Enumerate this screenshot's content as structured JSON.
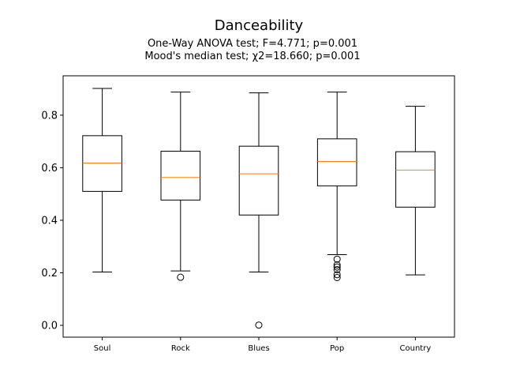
{
  "chart_data": {
    "type": "box",
    "title": "Danceability",
    "subtitle_lines": [
      "One-Way ANOVA test; F=4.771; p=0.001",
      "Mood's median test; χ2=18.660; p=0.001"
    ],
    "xlabel": "",
    "ylabel": "",
    "ylim": [
      -0.045,
      0.95
    ],
    "yticks": [
      0.0,
      0.2,
      0.4,
      0.6,
      0.8
    ],
    "ytick_labels": [
      "0.0",
      "0.2",
      "0.4",
      "0.6",
      "0.8"
    ],
    "categories": [
      "Soul",
      "Rock",
      "Blues",
      "Pop",
      "Country"
    ],
    "boxes": [
      {
        "category": "Soul",
        "whisker_low": 0.203,
        "q1": 0.51,
        "median": 0.618,
        "q3": 0.722,
        "whisker_high": 0.902,
        "outliers": []
      },
      {
        "category": "Rock",
        "whisker_low": 0.207,
        "q1": 0.477,
        "median": 0.563,
        "q3": 0.663,
        "whisker_high": 0.888,
        "outliers": [
          0.183
        ]
      },
      {
        "category": "Blues",
        "whisker_low": 0.203,
        "q1": 0.42,
        "median": 0.577,
        "q3": 0.682,
        "whisker_high": 0.885,
        "outliers": [
          0.001
        ]
      },
      {
        "category": "Pop",
        "whisker_low": 0.269,
        "q1": 0.531,
        "median": 0.624,
        "q3": 0.71,
        "whisker_high": 0.888,
        "outliers": [
          0.252,
          0.23,
          0.222,
          0.212,
          0.193,
          0.182
        ]
      },
      {
        "category": "Country",
        "whisker_low": 0.192,
        "q1": 0.45,
        "median": 0.591,
        "q3": 0.661,
        "whisker_high": 0.834,
        "outliers": []
      }
    ],
    "grid": false,
    "colors": {
      "box": "#000000",
      "median": "#ff7f0e",
      "background": "#ffffff"
    }
  }
}
